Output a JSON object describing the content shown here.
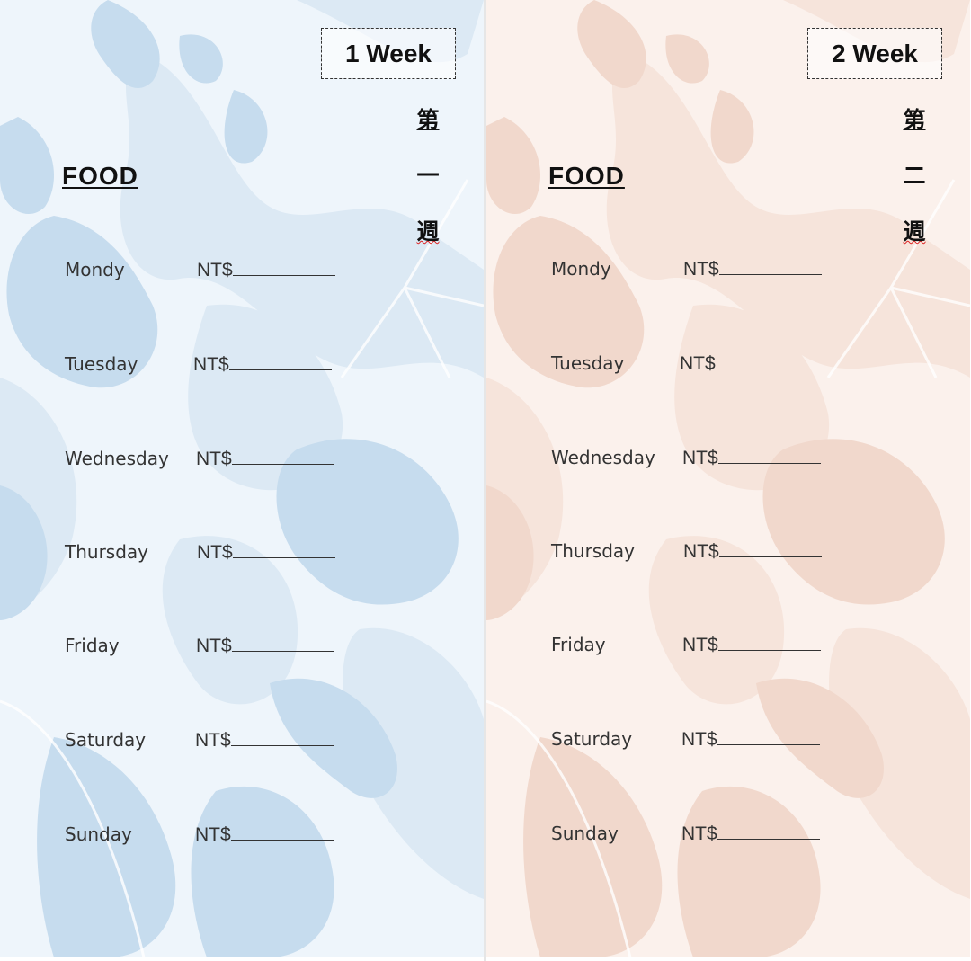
{
  "pages": [
    {
      "week_label": "1 Week",
      "vertical_chars": [
        "第",
        "一",
        "週"
      ],
      "title": "FOOD",
      "currency": "NT$",
      "days": [
        "Mondy",
        "Tuesday",
        "Wednesday",
        "Thursday",
        "Friday",
        "Saturday",
        "Sunday"
      ],
      "colors": {
        "background": "#eef5fb",
        "shape_dark": "#c6dcee",
        "shape_light": "#dce9f4"
      }
    },
    {
      "week_label": "2 Week",
      "vertical_chars": [
        "第",
        "二",
        "週"
      ],
      "title": "FOOD",
      "currency": "NT$",
      "days": [
        "Mondy",
        "Tuesday",
        "Wednesday",
        "Thursday",
        "Friday",
        "Saturday",
        "Sunday"
      ],
      "colors": {
        "background": "#fbf1ec",
        "shape_dark": "#f1d8cc",
        "shape_light": "#f6e4db"
      }
    }
  ]
}
